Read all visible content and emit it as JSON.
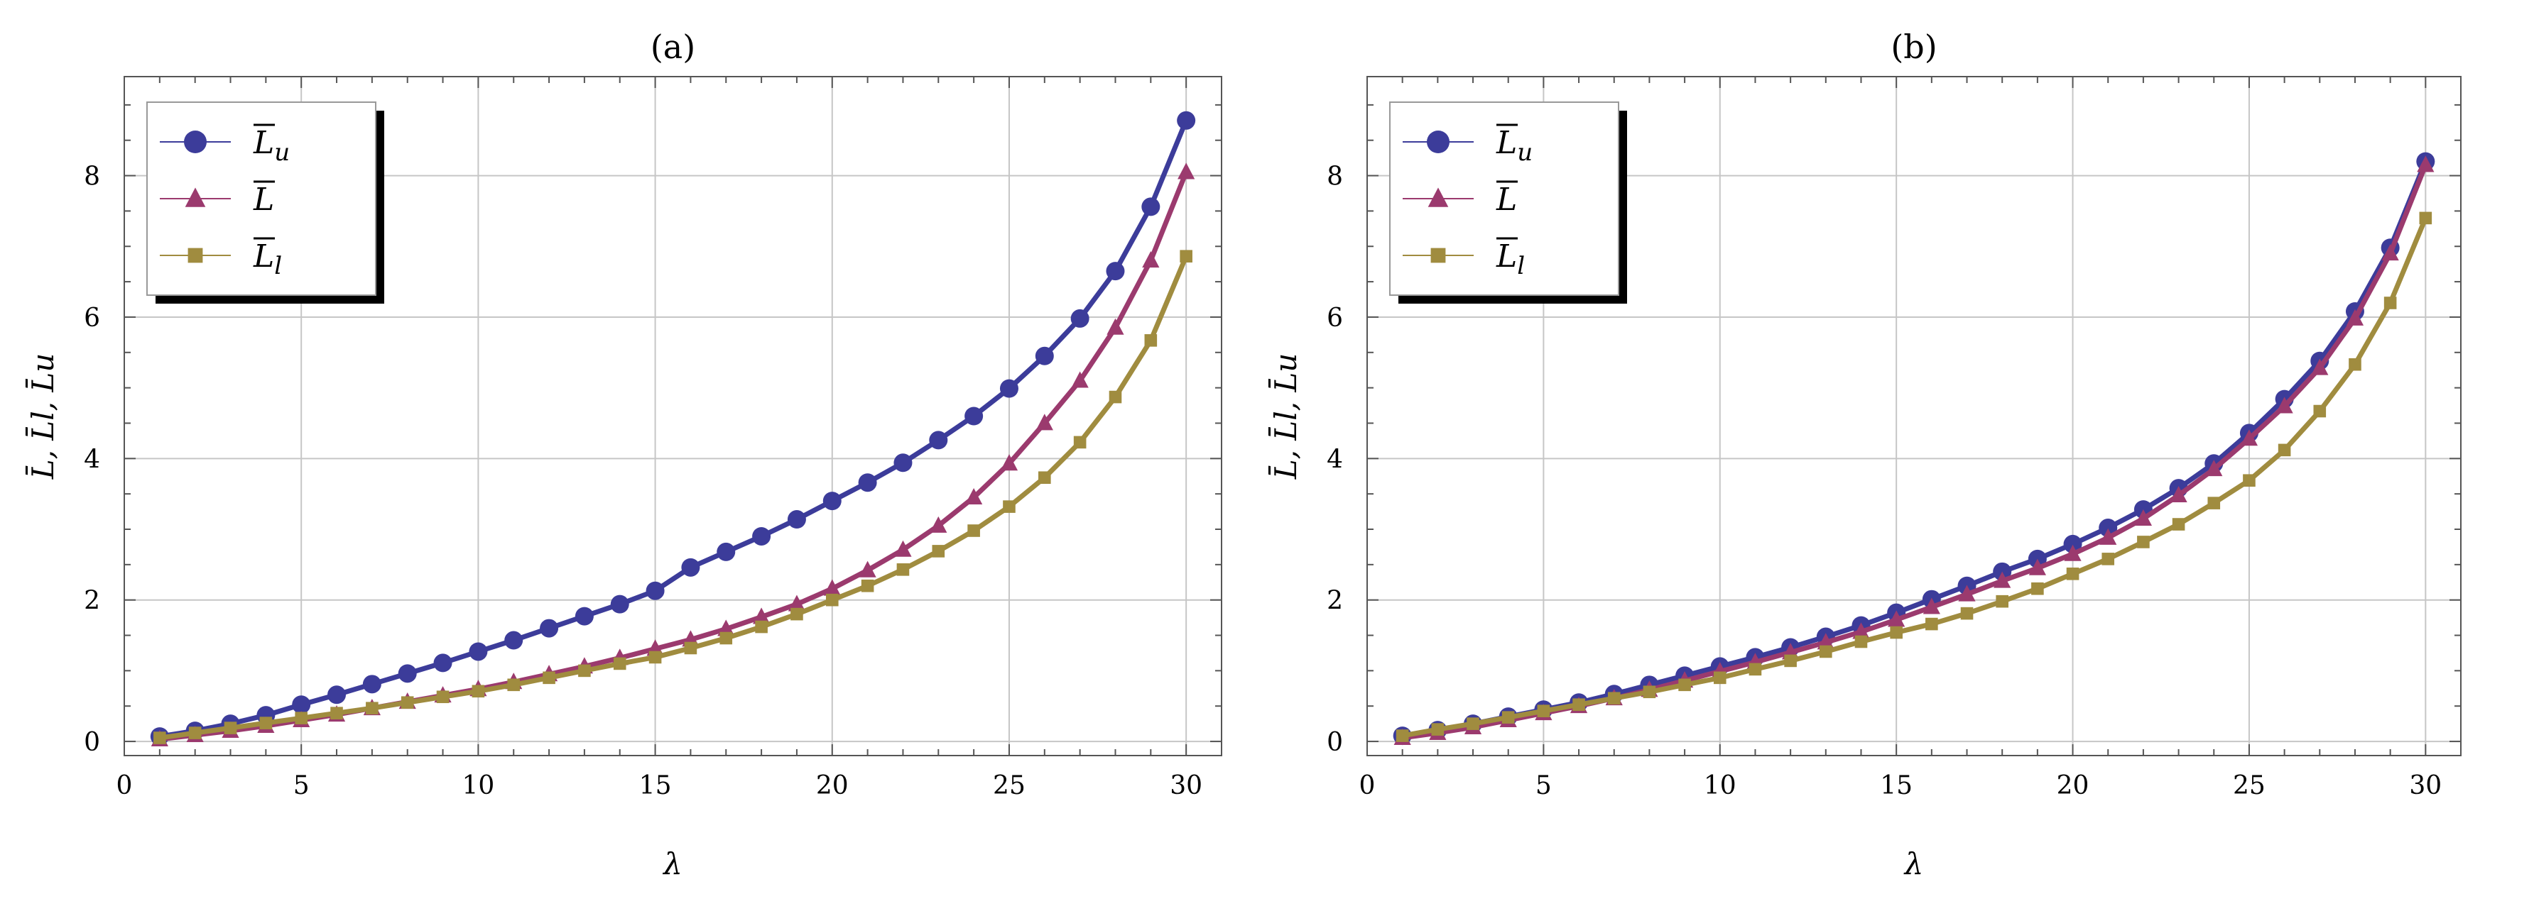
{
  "figure": {
    "colors": {
      "upper": "#3c3c9a",
      "mean": "#9b3a6e",
      "lower": "#a08c3f",
      "grid": "#c6c6c6",
      "frame": "#555555"
    }
  },
  "chart_data": [
    {
      "type": "line",
      "title": "(a)",
      "xlabel": "λ",
      "ylabel": "L̄, L̄l, L̄u",
      "xlim": [
        0,
        31
      ],
      "ylim": [
        -0.2,
        9.4
      ],
      "xticks": [
        0,
        5,
        10,
        15,
        20,
        25,
        30
      ],
      "yticks": [
        0,
        2,
        4,
        6,
        8
      ],
      "grid": true,
      "legend_position": "top-left",
      "x": [
        1,
        2,
        3,
        4,
        5,
        6,
        7,
        8,
        9,
        10,
        11,
        12,
        13,
        14,
        15,
        16,
        17,
        18,
        19,
        20,
        21,
        22,
        23,
        24,
        25,
        26,
        27,
        28,
        29,
        30
      ],
      "series": [
        {
          "name": "L̄u",
          "legend_main": "L",
          "legend_sub": "u",
          "marker": "circle",
          "color_key": "upper",
          "values": [
            0.07,
            0.15,
            0.25,
            0.37,
            0.52,
            0.66,
            0.81,
            0.96,
            1.11,
            1.27,
            1.43,
            1.6,
            1.77,
            1.94,
            2.13,
            2.46,
            2.68,
            2.9,
            3.14,
            3.4,
            3.66,
            3.94,
            4.26,
            4.6,
            4.99,
            5.45,
            5.98,
            6.65,
            7.56,
            8.78
          ]
        },
        {
          "name": "L̄",
          "legend_main": "L",
          "legend_sub": "",
          "marker": "triangle",
          "color_key": "mean",
          "values": [
            0.03,
            0.09,
            0.15,
            0.22,
            0.3,
            0.38,
            0.47,
            0.56,
            0.65,
            0.74,
            0.84,
            0.95,
            1.06,
            1.18,
            1.31,
            1.44,
            1.59,
            1.76,
            1.94,
            2.16,
            2.42,
            2.71,
            3.05,
            3.45,
            3.93,
            4.5,
            5.1,
            5.85,
            6.8,
            8.05
          ]
        },
        {
          "name": "L̄l",
          "legend_main": "L",
          "legend_sub": "l",
          "marker": "square",
          "color_key": "lower",
          "values": [
            0.05,
            0.12,
            0.19,
            0.26,
            0.33,
            0.4,
            0.47,
            0.55,
            0.63,
            0.71,
            0.8,
            0.9,
            1.0,
            1.1,
            1.19,
            1.32,
            1.46,
            1.62,
            1.8,
            2.0,
            2.2,
            2.43,
            2.69,
            2.98,
            3.32,
            3.73,
            4.23,
            4.87,
            5.67,
            6.86
          ]
        }
      ]
    },
    {
      "type": "line",
      "title": "(b)",
      "xlabel": "λ",
      "ylabel": "L̄, L̄l, L̄u",
      "xlim": [
        0,
        31
      ],
      "ylim": [
        -0.2,
        9.4
      ],
      "xticks": [
        0,
        5,
        10,
        15,
        20,
        25,
        30
      ],
      "yticks": [
        0,
        2,
        4,
        6,
        8
      ],
      "grid": true,
      "legend_position": "top-left",
      "x": [
        1,
        2,
        3,
        4,
        5,
        6,
        7,
        8,
        9,
        10,
        11,
        12,
        13,
        14,
        15,
        16,
        17,
        18,
        19,
        20,
        21,
        22,
        23,
        24,
        25,
        26,
        27,
        28,
        29,
        30
      ],
      "series": [
        {
          "name": "L̄u",
          "legend_main": "L",
          "legend_sub": "u",
          "marker": "circle",
          "color_key": "upper",
          "values": [
            0.08,
            0.16,
            0.25,
            0.35,
            0.45,
            0.55,
            0.67,
            0.8,
            0.93,
            1.06,
            1.19,
            1.33,
            1.48,
            1.64,
            1.82,
            2.01,
            2.2,
            2.4,
            2.58,
            2.79,
            3.02,
            3.28,
            3.58,
            3.93,
            4.36,
            4.84,
            5.38,
            6.08,
            6.98,
            8.2
          ]
        },
        {
          "name": "L̄",
          "legend_main": "L",
          "legend_sub": "",
          "marker": "triangle",
          "color_key": "mean",
          "values": [
            0.05,
            0.12,
            0.2,
            0.3,
            0.4,
            0.5,
            0.61,
            0.73,
            0.86,
            0.99,
            1.12,
            1.26,
            1.4,
            1.55,
            1.72,
            1.9,
            2.08,
            2.27,
            2.45,
            2.65,
            2.88,
            3.15,
            3.48,
            3.85,
            4.28,
            4.74,
            5.28,
            5.98,
            6.9,
            8.15
          ]
        },
        {
          "name": "L̄l",
          "legend_main": "L",
          "legend_sub": "l",
          "marker": "square",
          "color_key": "lower",
          "values": [
            0.08,
            0.17,
            0.25,
            0.34,
            0.43,
            0.52,
            0.61,
            0.7,
            0.8,
            0.9,
            1.02,
            1.14,
            1.27,
            1.41,
            1.54,
            1.66,
            1.81,
            1.98,
            2.16,
            2.37,
            2.58,
            2.82,
            3.07,
            3.37,
            3.69,
            4.12,
            4.67,
            5.33,
            6.2,
            7.4
          ]
        }
      ]
    }
  ]
}
